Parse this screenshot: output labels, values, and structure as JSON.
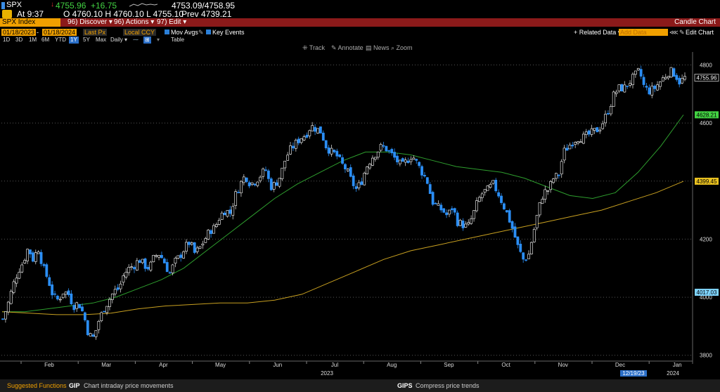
{
  "quote": {
    "ticker": "SPX",
    "arrow": "↓",
    "last": "4755.96",
    "change": "+16.75",
    "bid_ask": "4753.09/4758.95",
    "time": "At 9:37",
    "ohlc": "O 4760.10 H 4760.10 L 4755.10",
    "prev": "Prev 4739.21"
  },
  "toolbar": {
    "security": "SPX Index",
    "discover": "96) Discover ▾",
    "actions": "96) Actions ▾",
    "edit": "97) Edit ▾",
    "title": "Candle Chart"
  },
  "settings": {
    "start_date": "01/18/2023",
    "end_date": "01/18/2024",
    "price": "Last Px",
    "currency": "Local CCY",
    "mov_avgs": "Mov Avgs",
    "key_events": "Key Events",
    "related_data": "+ Related Data ▾",
    "add_data": "Add Data",
    "edit_chart": "Edit Chart"
  },
  "periods": [
    "1D",
    "3D",
    "1M",
    "6M",
    "YTD",
    "1Y",
    "5Y",
    "Max"
  ],
  "selected_period": "1Y",
  "frequency": "Daily ▾",
  "table_label": "Table",
  "tools": [
    "Track",
    "Annotate",
    "News",
    "Zoom"
  ],
  "chart_data": {
    "type": "candlestick",
    "ylim": [
      3780,
      4830
    ],
    "yticks": [
      3800,
      4000,
      4200,
      4400,
      4600,
      4800
    ],
    "months": [
      "Feb",
      "Mar",
      "Apr",
      "May",
      "Jun",
      "Jul",
      "Aug",
      "Sep",
      "Oct",
      "Nov",
      "Dec",
      "Jan"
    ],
    "year_labels": [
      "2023",
      "2024"
    ],
    "date_marker": "12/19/23",
    "price_labels": [
      {
        "value": 4755.96,
        "text": "4755.96",
        "color": "#ffffff"
      },
      {
        "value": 4628.21,
        "text": "4628.21",
        "color": "#43d343"
      },
      {
        "value": 4399.45,
        "text": "4399.45",
        "color": "#e8c020"
      },
      {
        "value": 4017.03,
        "text": "4017.03",
        "color": "#7fd4ff"
      }
    ],
    "close_path": [
      3925,
      3975,
      4040,
      4090,
      4120,
      4170,
      4130,
      4170,
      4100,
      4060,
      4000,
      3990,
      4020,
      4010,
      3970,
      3980,
      3940,
      3870,
      3860,
      3920,
      3960,
      3990,
      4020,
      4030,
      4080,
      4100,
      4110,
      4130,
      4110,
      4100,
      4140,
      4150,
      4120,
      4080,
      4120,
      4140,
      4170,
      4190,
      4150,
      4170,
      4200,
      4230,
      4240,
      4280,
      4300,
      4290,
      4350,
      4390,
      4420,
      4390,
      4400,
      4420,
      4440,
      4380,
      4390,
      4420,
      4480,
      4510,
      4530,
      4550,
      4560,
      4590,
      4580,
      4570,
      4520,
      4500,
      4490,
      4460,
      4440,
      4400,
      4370,
      4400,
      4450,
      4480,
      4500,
      4520,
      4510,
      4490,
      4470,
      4450,
      4470,
      4490,
      4460,
      4430,
      4400,
      4330,
      4310,
      4300,
      4280,
      4310,
      4260,
      4250,
      4240,
      4280,
      4330,
      4360,
      4370,
      4390,
      4360,
      4320,
      4280,
      4230,
      4170,
      4130,
      4140,
      4220,
      4300,
      4360,
      4370,
      4410,
      4420,
      4500,
      4520,
      4540,
      4550,
      4550,
      4560,
      4570,
      4580,
      4610,
      4650,
      4700,
      4720,
      4720,
      4740,
      4760,
      4780,
      4720,
      4710,
      4720,
      4740,
      4760,
      4780,
      4770,
      4740,
      4756
    ],
    "ma_green": [
      3950,
      3950,
      3960,
      3970,
      3980,
      4000,
      4030,
      4060,
      4100,
      4160,
      4220,
      4280,
      4340,
      4390,
      4430,
      4470,
      4500,
      4500,
      4490,
      4470,
      4450,
      4440,
      4430,
      4410,
      4380,
      4350,
      4340,
      4360,
      4430,
      4520,
      4628
    ],
    "ma_yellow": [
      3950,
      3945,
      3940,
      3940,
      3945,
      3960,
      3970,
      3975,
      3980,
      3980,
      3990,
      4010,
      4050,
      4090,
      4130,
      4160,
      4180,
      4200,
      4220,
      4240,
      4260,
      4280,
      4300,
      4330,
      4360,
      4399
    ]
  },
  "bottom": {
    "suggested": "Suggested Functions",
    "gip_code": "GIP",
    "gip_desc": "Chart intraday price movements",
    "gips_code": "GIPS",
    "gips_desc": "Compress price trends"
  }
}
